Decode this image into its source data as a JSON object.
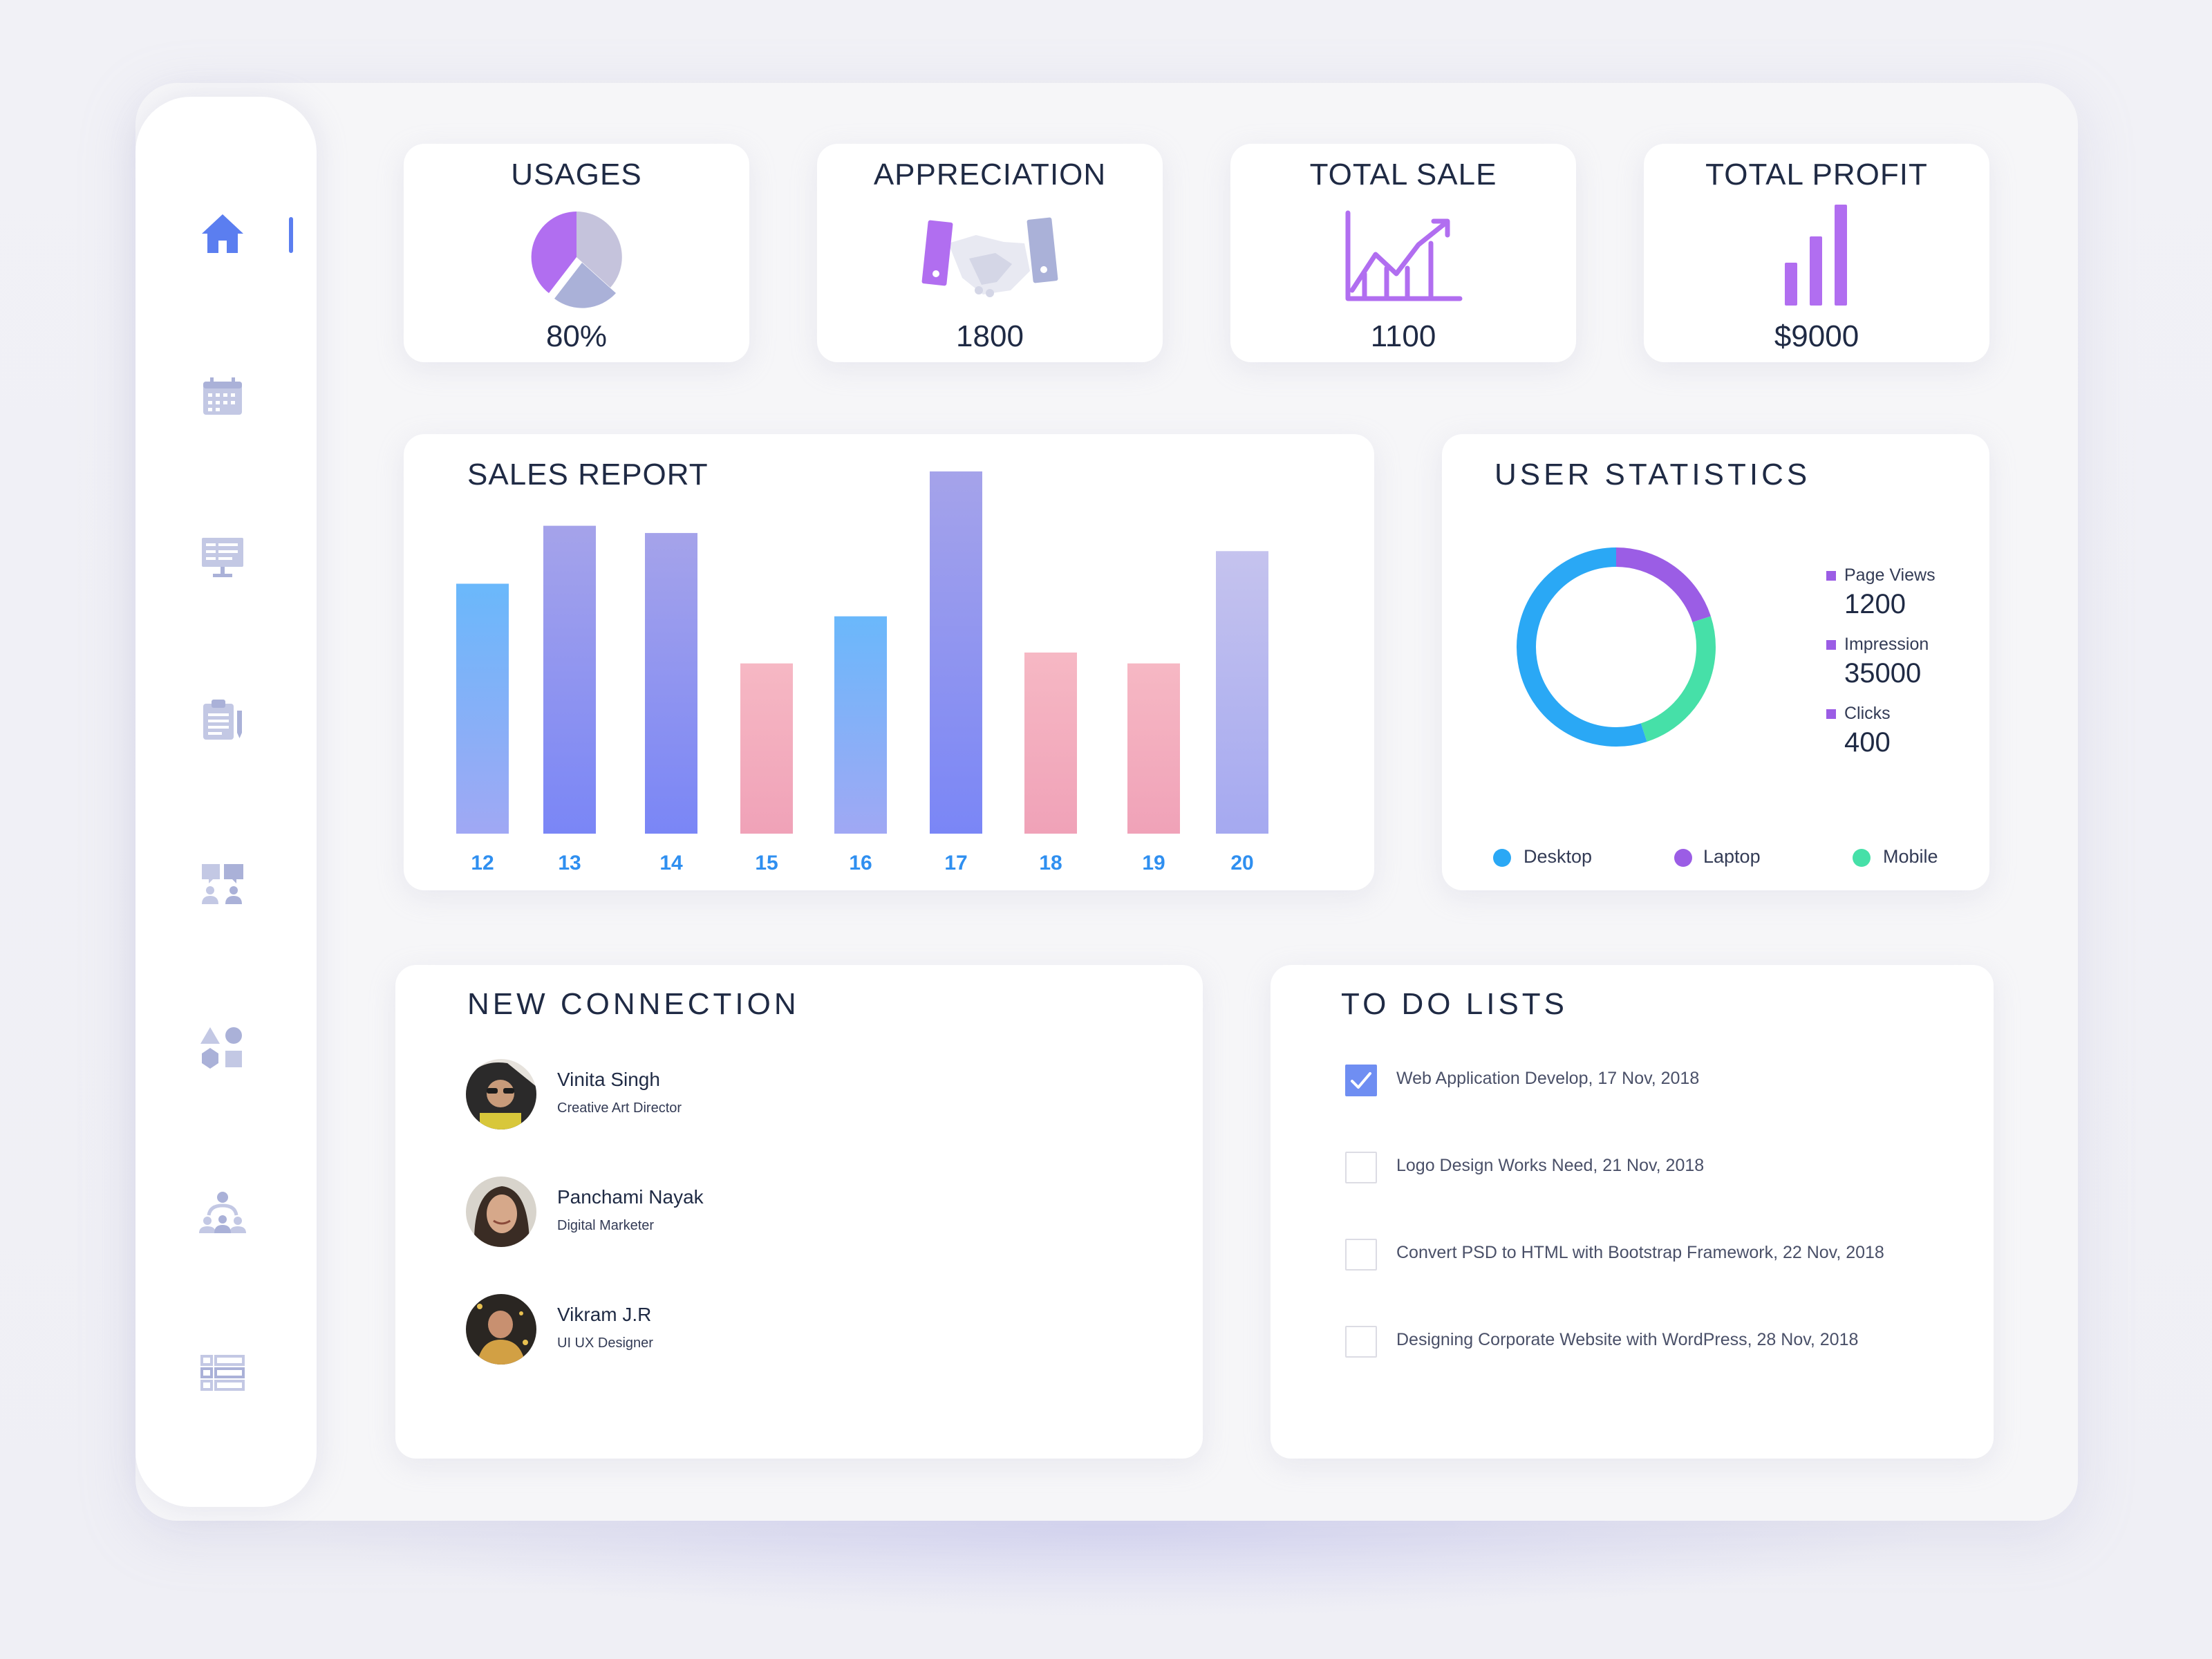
{
  "stats": [
    {
      "title": "USAGES",
      "value": "80%",
      "icon": "pie-chart-icon"
    },
    {
      "title": "APPRECIATION",
      "value": "1800",
      "icon": "handshake-icon"
    },
    {
      "title": "TOTAL SALE",
      "value": "1100",
      "icon": "line-growth-icon"
    },
    {
      "title": "TOTAL PROFIT",
      "value": "$9000",
      "icon": "bar-growth-icon"
    }
  ],
  "sidebar": {
    "items": [
      {
        "icon": "home-icon",
        "active": true
      },
      {
        "icon": "calendar-icon",
        "active": false
      },
      {
        "icon": "presentation-icon",
        "active": false
      },
      {
        "icon": "clipboard-icon",
        "active": false
      },
      {
        "icon": "chat-users-icon",
        "active": false
      },
      {
        "icon": "shapes-icon",
        "active": false
      },
      {
        "icon": "team-icon",
        "active": false
      },
      {
        "icon": "list-icon",
        "active": false
      }
    ]
  },
  "sales_report": {
    "title": "SALES REPORT"
  },
  "chart_data": [
    {
      "type": "bar",
      "title": "SALES REPORT",
      "categories": [
        "12",
        "13",
        "14",
        "15",
        "16",
        "17",
        "18",
        "19",
        "20"
      ],
      "values": [
        69,
        85,
        83,
        47,
        60,
        100,
        50,
        47,
        78
      ],
      "colors": [
        "blue",
        "violet",
        "violet",
        "pink",
        "blue",
        "violet",
        "pink",
        "pink",
        "lavender"
      ],
      "grid": false
    },
    {
      "type": "pie",
      "title": "USER STATISTICS",
      "categories": [
        "Desktop",
        "Laptop",
        "Mobile"
      ],
      "values": [
        55,
        20,
        25
      ],
      "colors": [
        "#2aa8f5",
        "#9b5de5",
        "#46e0a8"
      ]
    }
  ],
  "user_statistics": {
    "title": "USER STATISTICS",
    "metrics": [
      {
        "label": "Page Views",
        "value": "1200"
      },
      {
        "label": "Impression",
        "value": "35000"
      },
      {
        "label": "Clicks",
        "value": "400"
      }
    ],
    "legend": [
      {
        "label": "Desktop",
        "color": "#2aa8f5"
      },
      {
        "label": "Laptop",
        "color": "#9b5de5"
      },
      {
        "label": "Mobile",
        "color": "#46e0a8"
      }
    ]
  },
  "new_connection": {
    "title": "NEW CONNECTION",
    "people": [
      {
        "name": "Vinita Singh",
        "role": "Creative Art Director"
      },
      {
        "name": "Panchami Nayak",
        "role": "Digital Marketer"
      },
      {
        "name": "Vikram J.R",
        "role": "UI UX Designer"
      }
    ]
  },
  "todo": {
    "title": "TO DO LISTS",
    "items": [
      {
        "text": "Web Application Develop, 17 Nov, 2018",
        "done": true
      },
      {
        "text": "Logo Design Works Need, 21 Nov, 2018",
        "done": false
      },
      {
        "text": "Convert PSD to HTML with Bootstrap Framework, 22 Nov, 2018",
        "done": false
      },
      {
        "text": "Designing Corporate Website with WordPress, 28 Nov, 2018",
        "done": false
      }
    ]
  }
}
